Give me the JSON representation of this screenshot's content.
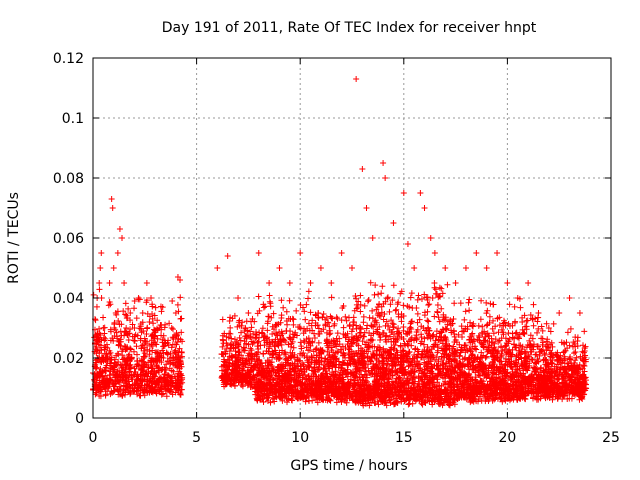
{
  "chart_data": {
    "type": "scatter",
    "title": "Day 191 of 2011, Rate Of TEC Index for receiver hnpt",
    "xlabel": "GPS time / hours",
    "ylabel": "ROTI / TECUs",
    "xlim": [
      0,
      25
    ],
    "ylim": [
      0,
      0.12
    ],
    "xticks": [
      "0",
      "5",
      "10",
      "15",
      "20",
      "25"
    ],
    "yticks": [
      "0",
      "0.02",
      "0.04",
      "0.06",
      "0.08",
      "0.1",
      "0.12"
    ],
    "grid": true,
    "marker": "plus",
    "color": "#ff0000",
    "points": [
      [
        0.0,
        0.015
      ],
      [
        0.1,
        0.025
      ],
      [
        0.2,
        0.04
      ],
      [
        0.3,
        0.045
      ],
      [
        0.35,
        0.05
      ],
      [
        0.4,
        0.055
      ],
      [
        0.5,
        0.03
      ],
      [
        0.6,
        0.02
      ],
      [
        0.8,
        0.045
      ],
      [
        0.9,
        0.073
      ],
      [
        0.95,
        0.07
      ],
      [
        1.0,
        0.05
      ],
      [
        1.1,
        0.035
      ],
      [
        1.2,
        0.055
      ],
      [
        1.3,
        0.063
      ],
      [
        1.4,
        0.06
      ],
      [
        1.5,
        0.045
      ],
      [
        1.6,
        0.03
      ],
      [
        1.8,
        0.035
      ],
      [
        2.0,
        0.03
      ],
      [
        2.2,
        0.04
      ],
      [
        2.4,
        0.035
      ],
      [
        2.6,
        0.045
      ],
      [
        2.8,
        0.04
      ],
      [
        3.0,
        0.025
      ],
      [
        3.2,
        0.03
      ],
      [
        3.4,
        0.02
      ],
      [
        3.6,
        0.025
      ],
      [
        3.8,
        0.03
      ],
      [
        4.0,
        0.035
      ],
      [
        4.1,
        0.047
      ],
      [
        4.2,
        0.046
      ],
      [
        6.0,
        0.05
      ],
      [
        6.5,
        0.054
      ],
      [
        7.0,
        0.04
      ],
      [
        7.5,
        0.035
      ],
      [
        8.0,
        0.055
      ],
      [
        8.5,
        0.045
      ],
      [
        9.0,
        0.05
      ],
      [
        9.5,
        0.045
      ],
      [
        10.0,
        0.055
      ],
      [
        10.5,
        0.045
      ],
      [
        11.0,
        0.05
      ],
      [
        11.5,
        0.045
      ],
      [
        12.0,
        0.055
      ],
      [
        12.5,
        0.05
      ],
      [
        12.7,
        0.113
      ],
      [
        13.0,
        0.083
      ],
      [
        13.2,
        0.07
      ],
      [
        13.5,
        0.06
      ],
      [
        14.0,
        0.085
      ],
      [
        14.1,
        0.08
      ],
      [
        14.5,
        0.065
      ],
      [
        15.0,
        0.075
      ],
      [
        15.2,
        0.058
      ],
      [
        15.5,
        0.05
      ],
      [
        15.8,
        0.075
      ],
      [
        16.0,
        0.07
      ],
      [
        16.3,
        0.06
      ],
      [
        16.5,
        0.055
      ],
      [
        17.0,
        0.05
      ],
      [
        17.5,
        0.045
      ],
      [
        18.0,
        0.05
      ],
      [
        18.5,
        0.055
      ],
      [
        19.0,
        0.05
      ],
      [
        19.5,
        0.055
      ],
      [
        20.0,
        0.045
      ],
      [
        20.5,
        0.04
      ],
      [
        21.0,
        0.045
      ],
      [
        21.5,
        0.035
      ],
      [
        22.0,
        0.03
      ],
      [
        22.5,
        0.035
      ],
      [
        23.0,
        0.04
      ],
      [
        23.5,
        0.035
      ]
    ],
    "clusters": [
      {
        "x": [
          0.0,
          4.3
        ],
        "ymin": 0.007,
        "ymax": 0.04,
        "n": 900,
        "seed": 11
      },
      {
        "x": [
          6.2,
          7.8
        ],
        "ymin": 0.01,
        "ymax": 0.035,
        "n": 350,
        "seed": 23
      },
      {
        "x": [
          7.8,
          12.5
        ],
        "ymin": 0.005,
        "ymax": 0.04,
        "n": 1300,
        "seed": 37
      },
      {
        "x": [
          12.5,
          17.5
        ],
        "ymin": 0.004,
        "ymax": 0.045,
        "n": 1500,
        "seed": 41
      },
      {
        "x": [
          17.5,
          21.5
        ],
        "ymin": 0.005,
        "ymax": 0.04,
        "n": 1100,
        "seed": 53
      },
      {
        "x": [
          21.5,
          23.8
        ],
        "ymin": 0.006,
        "ymax": 0.03,
        "n": 600,
        "seed": 67
      }
    ]
  }
}
